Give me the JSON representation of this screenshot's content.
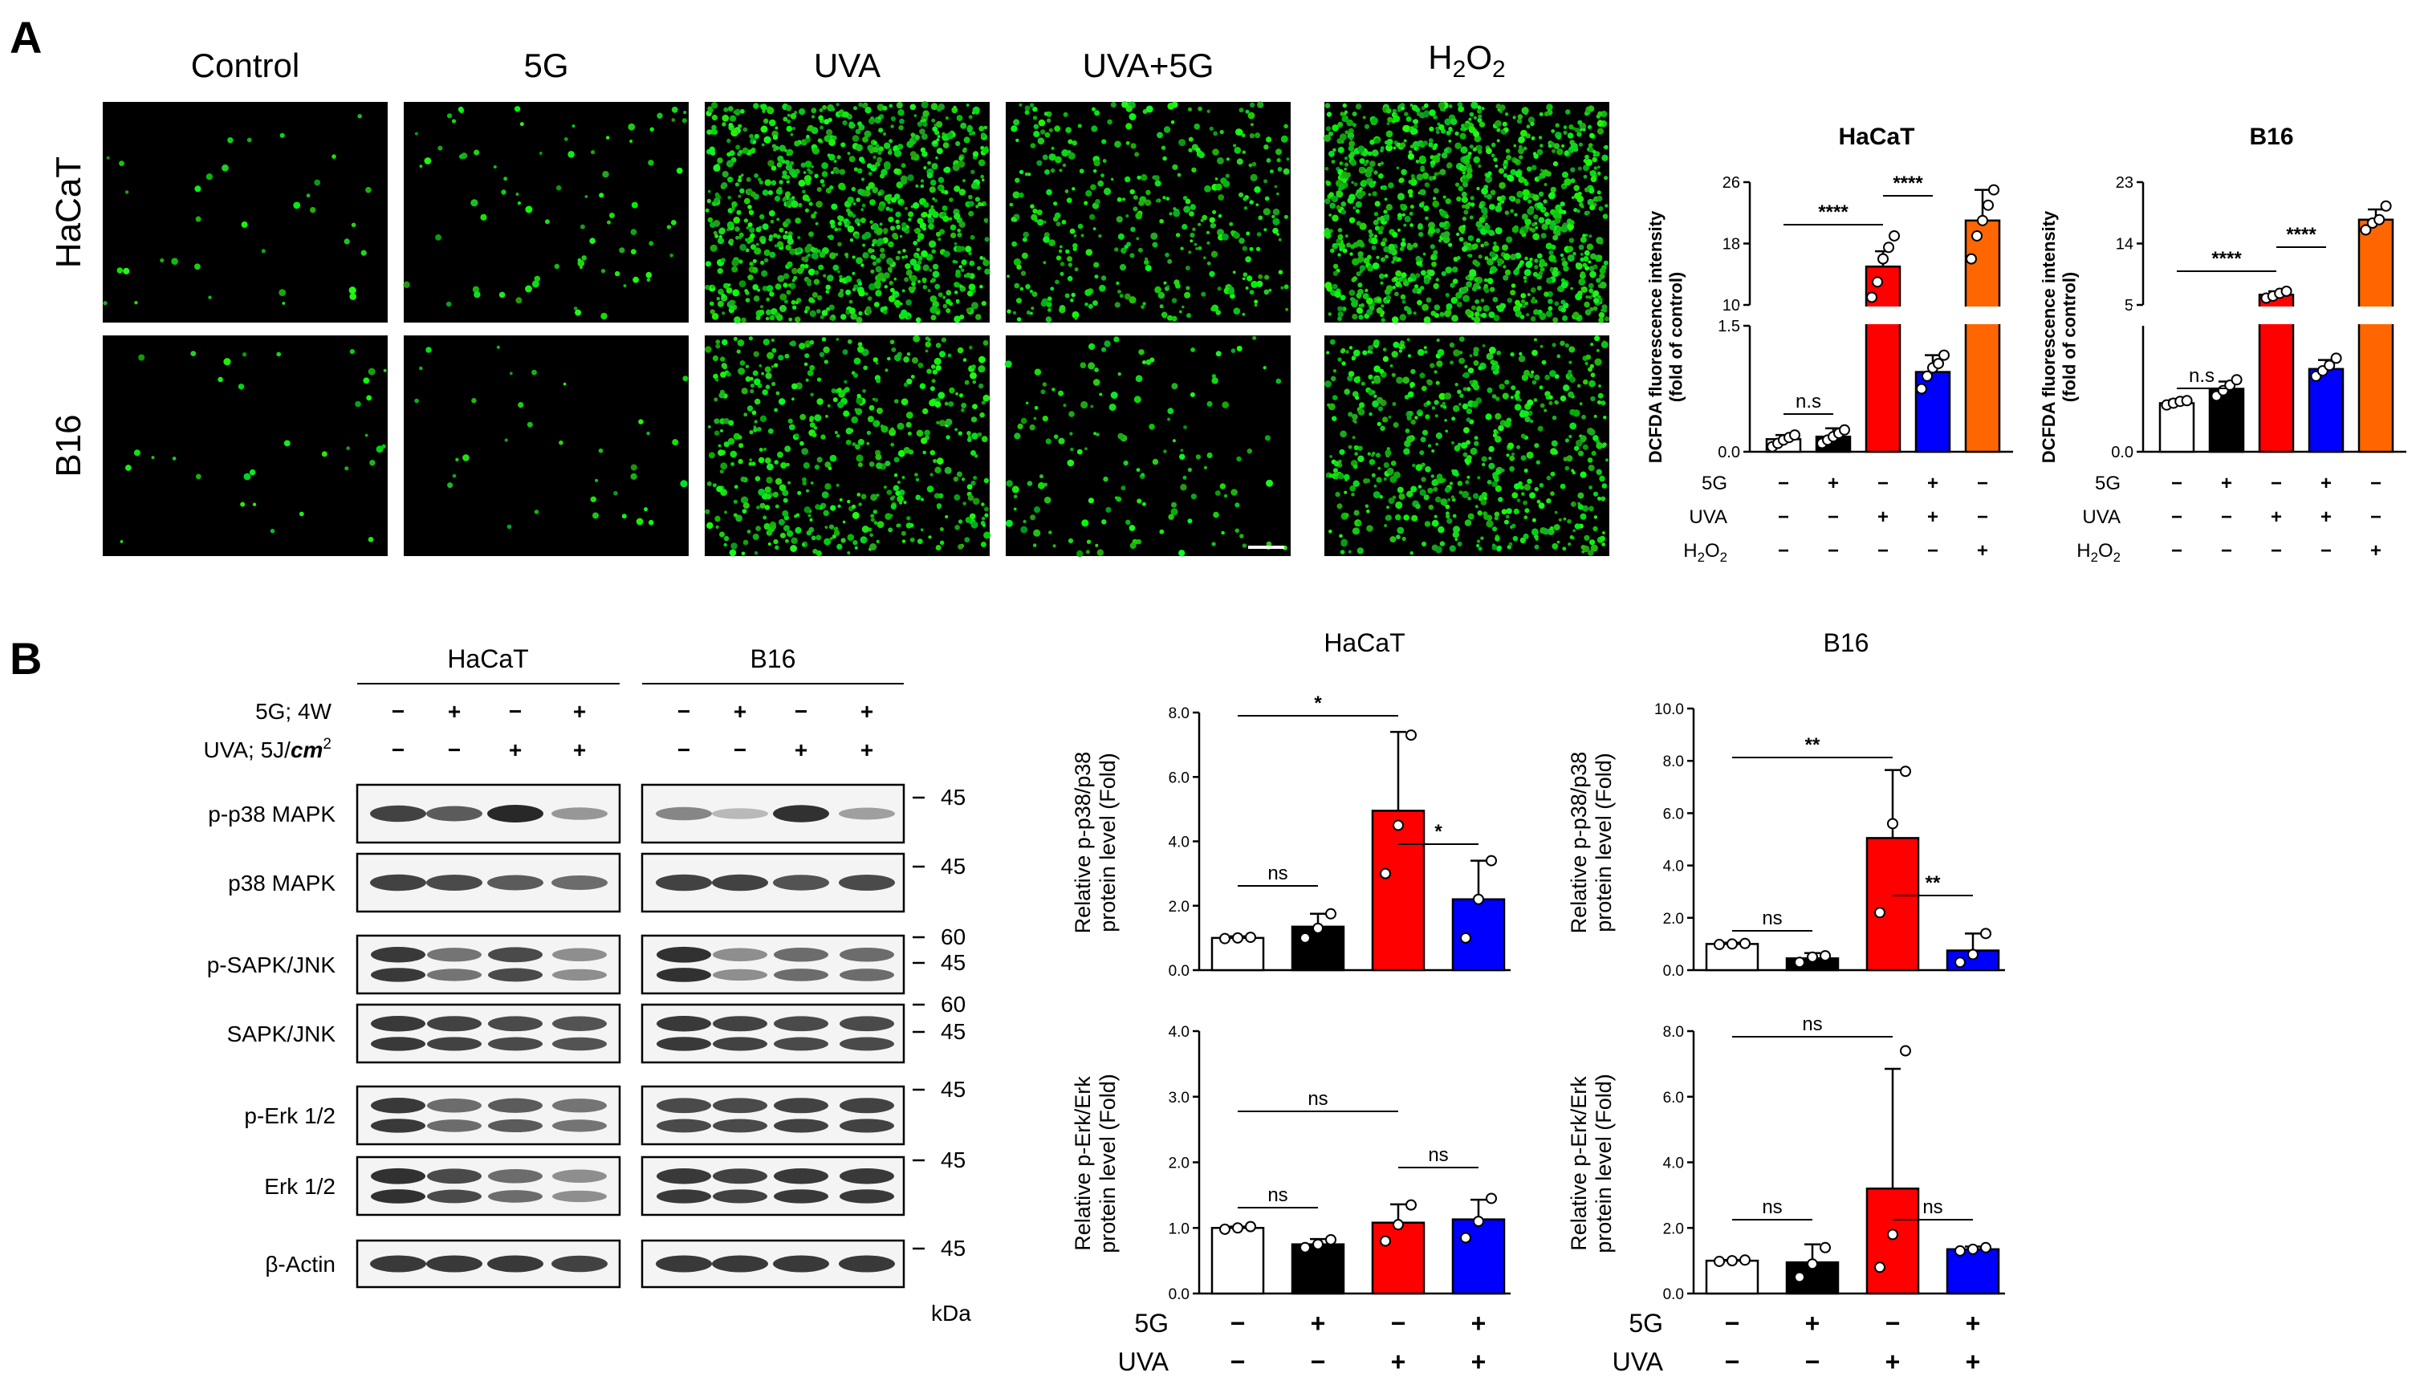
{
  "figure": {
    "panel_a_label": "A",
    "panel_b_label": "B"
  },
  "micro": {
    "col_labels": [
      "Control",
      "5G",
      "UVA",
      "UVA+5G"
    ],
    "h2o2_label": {
      "main": "H",
      "sub": "2",
      "main2": "O",
      "sub2": "2"
    },
    "row_labels": [
      "HaCaT",
      "B16"
    ],
    "intensity": [
      [
        0.02,
        0.06,
        0.85,
        0.35,
        1.0
      ],
      [
        0.02,
        0.02,
        0.45,
        0.12,
        0.55
      ]
    ]
  },
  "chart_data": [
    {
      "type": "bar",
      "panel": "A",
      "title": "HaCaT",
      "ylabel": "DCFDA fluorescence intensity\n(fold of control)",
      "y_ticks_lower": [
        "0.0",
        "1.5"
      ],
      "y_ticks_upper": [
        "10",
        "18",
        "26"
      ],
      "ylim_lower": [
        0,
        1.5
      ],
      "ylim_upper": [
        10,
        26
      ],
      "categories": [
        "Control",
        "5G",
        "UVA",
        "UVA+5G",
        "H2O2"
      ],
      "values": [
        0.15,
        0.18,
        15.0,
        0.95,
        21.0
      ],
      "errors": [
        0.05,
        0.1,
        2.0,
        0.2,
        4.0
      ],
      "colors": [
        "#ffffff",
        "#000000",
        "#ff0000",
        "#0000ff",
        "#ff6600"
      ],
      "points": [
        [
          0.06,
          0.1,
          0.14,
          0.17,
          0.2
        ],
        [
          0.1,
          0.14,
          0.18,
          0.22,
          0.26
        ],
        [
          11,
          13,
          16,
          17.5,
          19
        ],
        [
          0.75,
          0.9,
          1.0,
          1.05,
          1.15
        ],
        [
          16,
          19,
          21,
          23,
          25
        ]
      ],
      "significance": [
        {
          "text": "n.s",
          "from": 0,
          "to": 1
        },
        {
          "text": "****",
          "from": 0,
          "to": 2
        },
        {
          "text": "****",
          "from": 2,
          "to": 3
        }
      ],
      "treatments": [
        {
          "name": "5G",
          "signs": [
            "−",
            "+",
            "−",
            "+",
            "−"
          ]
        },
        {
          "name": "UVA",
          "signs": [
            "−",
            "−",
            "+",
            "+",
            "−"
          ]
        },
        {
          "name": "H2O2",
          "signs": [
            "−",
            "−",
            "−",
            "−",
            "+"
          ]
        }
      ]
    },
    {
      "type": "bar",
      "panel": "A",
      "title": "B16",
      "ylabel": "DCFDA fluorescence intensity\n(fold of control)",
      "y_ticks_lower": [
        "0.0"
      ],
      "y_ticks_upper": [
        "5",
        "14",
        "23"
      ],
      "ylim_lower": [
        0,
        3.5
      ],
      "ylim_upper": [
        5,
        23
      ],
      "categories": [
        "Control",
        "5G",
        "UVA",
        "UVA+5G",
        "H2O2"
      ],
      "values": [
        1.35,
        1.75,
        6.5,
        2.3,
        17.5
      ],
      "errors": [
        0.1,
        0.2,
        0.5,
        0.25,
        1.5
      ],
      "colors": [
        "#ffffff",
        "#000000",
        "#ff0000",
        "#0000ff",
        "#ff6600"
      ],
      "points": [
        [
          1.3,
          1.35,
          1.4,
          1.42
        ],
        [
          1.55,
          1.7,
          1.85,
          2.0
        ],
        [
          6.0,
          6.3,
          6.7,
          7.0
        ],
        [
          2.1,
          2.25,
          2.4,
          2.6
        ],
        [
          16,
          17,
          17.5,
          19.5
        ]
      ],
      "significance": [
        {
          "text": "n.s",
          "from": 0,
          "to": 1
        },
        {
          "text": "****",
          "from": 0,
          "to": 2
        },
        {
          "text": "****",
          "from": 2,
          "to": 3
        }
      ],
      "treatments": [
        {
          "name": "5G",
          "signs": [
            "−",
            "+",
            "−",
            "+",
            "−"
          ]
        },
        {
          "name": "UVA",
          "signs": [
            "−",
            "−",
            "+",
            "+",
            "−"
          ]
        },
        {
          "name": "H2O2",
          "signs": [
            "−",
            "−",
            "−",
            "−",
            "+"
          ]
        }
      ]
    },
    {
      "type": "bar",
      "panel": "B",
      "title": "HaCaT",
      "ylabel": "Relative p-p38/p38\nprotein level (Fold)",
      "ylim": [
        0,
        8
      ],
      "y_ticks": [
        "0.0",
        "2.0",
        "4.0",
        "6.0",
        "8.0"
      ],
      "categories": [
        "Control",
        "5G",
        "UVA",
        "UVA+5G"
      ],
      "values": [
        1.0,
        1.35,
        4.95,
        2.2
      ],
      "errors": [
        0.05,
        0.4,
        2.45,
        1.2
      ],
      "colors": [
        "#ffffff",
        "#000000",
        "#ff0000",
        "#0000ff"
      ],
      "points": [
        [
          0.98,
          1.0,
          1.02
        ],
        [
          1.0,
          1.3,
          1.75
        ],
        [
          3.0,
          4.5,
          7.3
        ],
        [
          1.0,
          2.2,
          3.4
        ]
      ],
      "significance": [
        {
          "text": "ns",
          "from": 0,
          "to": 1
        },
        {
          "text": "*",
          "from": 0,
          "to": 2
        },
        {
          "text": "*",
          "from": 2,
          "to": 3
        }
      ]
    },
    {
      "type": "bar",
      "panel": "B",
      "title": "B16",
      "ylabel": "Relative p-p38/p38\nprotein level (Fold)",
      "ylim": [
        0,
        10
      ],
      "y_ticks": [
        "0.0",
        "2.0",
        "4.0",
        "6.0",
        "8.0",
        "10.0"
      ],
      "categories": [
        "Control",
        "5G",
        "UVA",
        "UVA+5G"
      ],
      "values": [
        1.0,
        0.45,
        5.05,
        0.75
      ],
      "errors": [
        0.05,
        0.2,
        2.6,
        0.65
      ],
      "colors": [
        "#ffffff",
        "#000000",
        "#ff0000",
        "#0000ff"
      ],
      "points": [
        [
          0.98,
          1.0,
          1.02
        ],
        [
          0.3,
          0.5,
          0.55
        ],
        [
          2.2,
          5.6,
          7.6
        ],
        [
          0.3,
          0.6,
          1.4
        ]
      ],
      "significance": [
        {
          "text": "ns",
          "from": 0,
          "to": 1
        },
        {
          "text": "**",
          "from": 0,
          "to": 2
        },
        {
          "text": "**",
          "from": 2,
          "to": 3
        }
      ]
    },
    {
      "type": "bar",
      "panel": "B",
      "title": "",
      "ylabel": "Relative p-Erk/Erk\nprotein level (Fold)",
      "ylim": [
        0,
        4
      ],
      "y_ticks": [
        "0.0",
        "1.0",
        "2.0",
        "3.0",
        "4.0"
      ],
      "categories": [
        "Control",
        "5G",
        "UVA",
        "UVA+5G"
      ],
      "values": [
        1.0,
        0.75,
        1.08,
        1.13
      ],
      "errors": [
        0.02,
        0.08,
        0.28,
        0.3
      ],
      "colors": [
        "#ffffff",
        "#000000",
        "#ff0000",
        "#0000ff"
      ],
      "points": [
        [
          0.98,
          1.0,
          1.02
        ],
        [
          0.7,
          0.75,
          0.82
        ],
        [
          0.8,
          1.05,
          1.35
        ],
        [
          0.85,
          1.1,
          1.45
        ]
      ],
      "significance": [
        {
          "text": "ns",
          "from": 0,
          "to": 1
        },
        {
          "text": "ns",
          "from": 0,
          "to": 2
        },
        {
          "text": "ns",
          "from": 2,
          "to": 3
        }
      ],
      "treatments": [
        {
          "name": "5G",
          "signs": [
            "−",
            "+",
            "−",
            "+"
          ]
        },
        {
          "name": "UVA",
          "signs": [
            "−",
            "−",
            "+",
            "+"
          ]
        }
      ]
    },
    {
      "type": "bar",
      "panel": "B",
      "title": "",
      "ylabel": "Relative p-Erk/Erk\nprotein level (Fold)",
      "ylim": [
        0,
        8
      ],
      "y_ticks": [
        "0.0",
        "2.0",
        "4.0",
        "6.0",
        "8.0"
      ],
      "categories": [
        "Control",
        "5G",
        "UVA",
        "UVA+5G"
      ],
      "values": [
        1.0,
        0.95,
        3.2,
        1.35
      ],
      "errors": [
        0.02,
        0.55,
        3.65,
        0.08
      ],
      "colors": [
        "#ffffff",
        "#000000",
        "#ff0000",
        "#0000ff"
      ],
      "points": [
        [
          0.98,
          1.0,
          1.02
        ],
        [
          0.5,
          0.9,
          1.4
        ],
        [
          0.8,
          1.8,
          7.4
        ],
        [
          1.3,
          1.35,
          1.4
        ]
      ],
      "significance": [
        {
          "text": "ns",
          "from": 0,
          "to": 1
        },
        {
          "text": "ns",
          "from": 0,
          "to": 2
        },
        {
          "text": "ns",
          "from": 2,
          "to": 3
        }
      ],
      "treatments": [
        {
          "name": "5G",
          "signs": [
            "−",
            "+",
            "−",
            "+"
          ]
        },
        {
          "name": "UVA",
          "signs": [
            "−",
            "−",
            "+",
            "+"
          ]
        }
      ]
    }
  ],
  "blot": {
    "groups": [
      "HaCaT",
      "B16"
    ],
    "treatment_rows": [
      {
        "label": "5G; 4W",
        "signs": [
          "−",
          "+",
          "−",
          "+"
        ]
      },
      {
        "label_main": "UVA; 5J/",
        "label_unit": "cm",
        "label_sup": "2",
        "signs": [
          "−",
          "−",
          "+",
          "+"
        ]
      }
    ],
    "row_labels": [
      "p-p38 MAPK",
      "p38 MAPK",
      "p-SAPK/JNK",
      "SAPK/JNK",
      "p-Erk 1/2",
      "Erk 1/2",
      "β-Actin"
    ],
    "markers": [
      [
        "45"
      ],
      [
        "45"
      ],
      [
        "60",
        "45"
      ],
      [
        "60",
        "45"
      ],
      [
        "45"
      ],
      [
        "45"
      ],
      [
        "45"
      ]
    ],
    "kda_label": "kDa",
    "intensity_hacat": [
      [
        0.85,
        0.7,
        1.0,
        0.35
      ],
      [
        0.85,
        0.8,
        0.7,
        0.6
      ],
      [
        0.9,
        0.55,
        0.8,
        0.4
      ],
      [
        0.9,
        0.85,
        0.8,
        0.75
      ],
      [
        0.9,
        0.6,
        0.7,
        0.55
      ],
      [
        0.95,
        0.8,
        0.6,
        0.4
      ],
      [
        0.9,
        0.9,
        0.9,
        0.85
      ]
    ],
    "intensity_b16": [
      [
        0.45,
        0.15,
        0.95,
        0.3
      ],
      [
        0.85,
        0.85,
        0.75,
        0.8
      ],
      [
        0.95,
        0.4,
        0.6,
        0.6
      ],
      [
        0.9,
        0.85,
        0.8,
        0.8
      ],
      [
        0.8,
        0.8,
        0.85,
        0.85
      ],
      [
        0.9,
        0.85,
        0.9,
        0.9
      ],
      [
        0.9,
        0.9,
        0.9,
        0.9
      ]
    ],
    "double_band": [
      false,
      false,
      true,
      true,
      true,
      true,
      false
    ]
  }
}
